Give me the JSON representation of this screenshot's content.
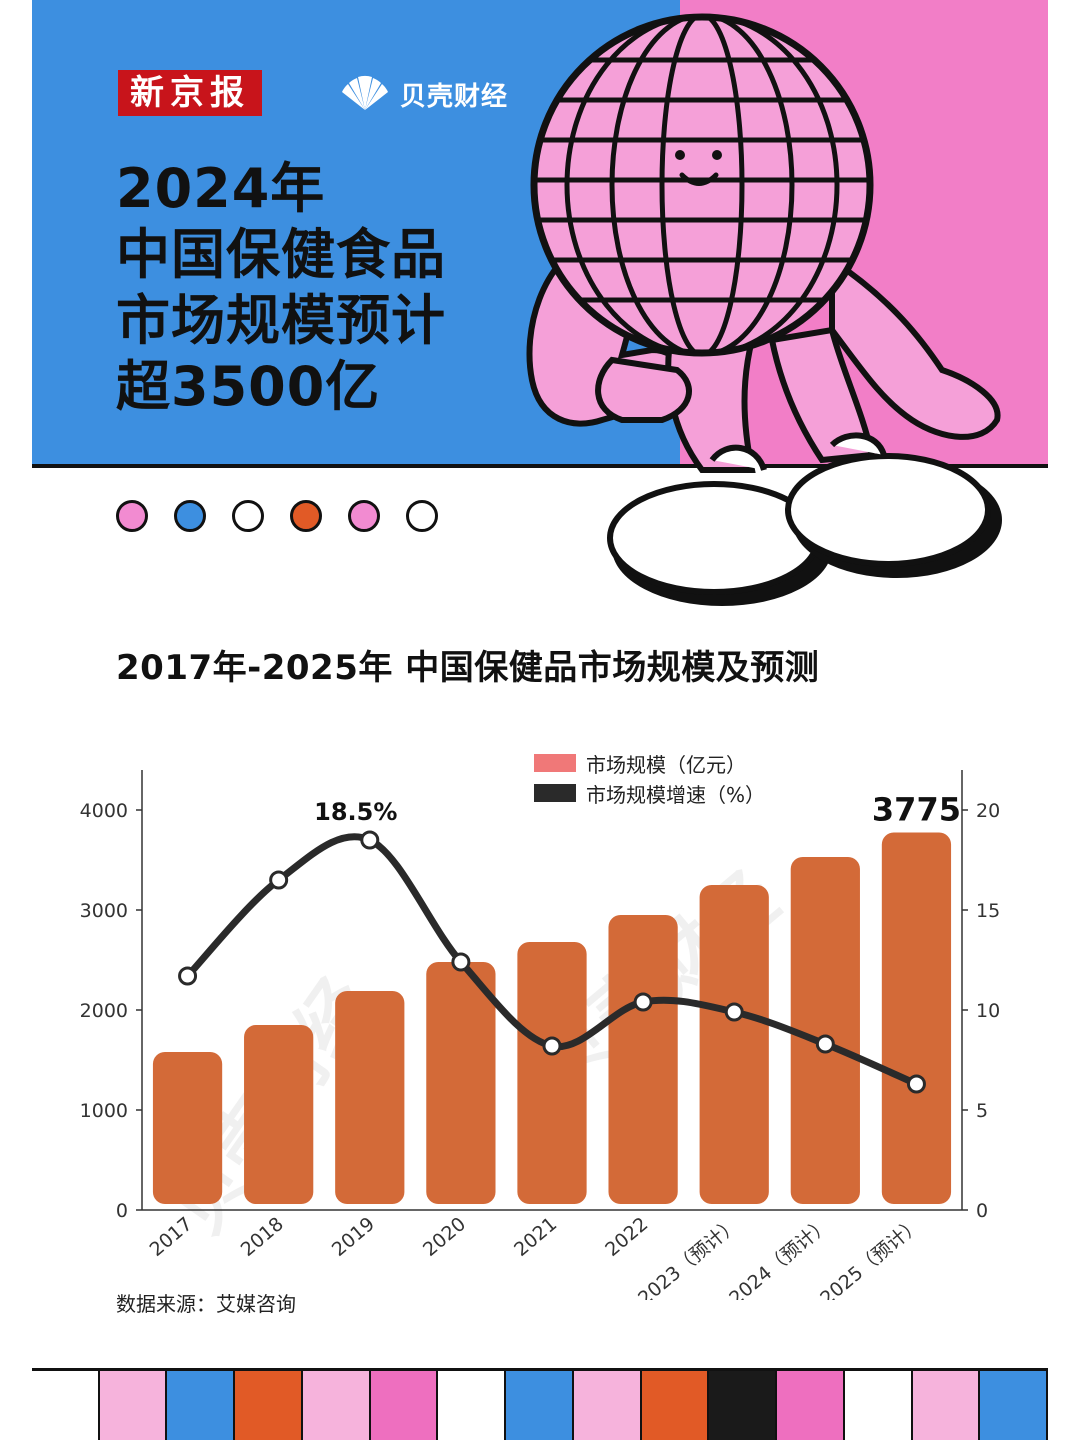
{
  "header": {
    "logo_xinjingbao": "新京报",
    "logo_beike": "贝壳财经",
    "headline_lines": [
      "2024年",
      "中国保健食品",
      "市场规模预计",
      "超3500亿"
    ],
    "colors": {
      "blue": "#3d8fe0",
      "pink": "#f27ec7",
      "red": "#c8141b",
      "orange": "#e15a26"
    }
  },
  "decor": {
    "dot_colors": [
      "#f28bd1",
      "#3d8fe0",
      "#ffffff",
      "#e15a26",
      "#f28bd1",
      "#ffffff"
    ],
    "stripe_colors": [
      "#ffffff",
      "#f6b3dc",
      "#3d8fe0",
      "#e15a26",
      "#f6b3dc",
      "#ee6fbf",
      "#ffffff",
      "#3d8fe0",
      "#f6b3dc",
      "#e15a26",
      "#1a1a1a",
      "#ee6fbf",
      "#ffffff",
      "#f6b3dc",
      "#3d8fe0"
    ]
  },
  "chart_data": {
    "type": "bar",
    "title": "2017年-2025年 中国保健品市场规模及预测",
    "categories": [
      "2017",
      "2018",
      "2019",
      "2020",
      "2021",
      "2022",
      "2023（预计）",
      "2024（预计）",
      "2025（预计）"
    ],
    "series": [
      {
        "name": "市场规模（亿元）",
        "type": "bar",
        "axis": "left",
        "color": "#d36a38",
        "values": [
          1580,
          1850,
          2190,
          2480,
          2680,
          2950,
          3250,
          3530,
          3775
        ]
      },
      {
        "name": "市场规模增速（%）",
        "type": "line",
        "axis": "right",
        "color": "#2a2a2a",
        "values": [
          11.7,
          16.5,
          18.5,
          12.4,
          8.2,
          10.4,
          9.9,
          8.3,
          6.3
        ]
      }
    ],
    "ylim_left": [
      0,
      4000
    ],
    "yticks_left": [
      "0",
      "1000",
      "2000",
      "3000",
      "4000"
    ],
    "ylim_right": [
      0,
      20
    ],
    "yticks_right": [
      "0",
      "5",
      "10",
      "15",
      "20"
    ],
    "annotations": {
      "peak_growth": "18.5%",
      "last_value": "3775"
    },
    "legend_position": "top-right",
    "grid": false,
    "watermark": "贝壳财经",
    "source": "数据来源：艾媒咨询"
  }
}
